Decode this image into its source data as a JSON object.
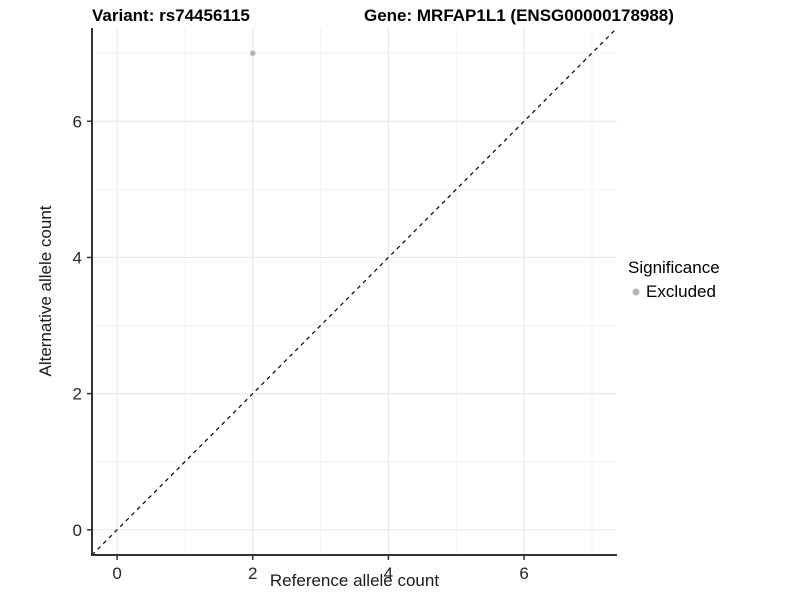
{
  "header": {
    "variant_title": "Variant: rs74456115",
    "gene_title": "Gene: MRFAP1L1 (ENSG00000178988)"
  },
  "chart_data": {
    "type": "scatter",
    "title_left": "Variant: rs74456115",
    "title_right": "Gene: MRFAP1L1 (ENSG00000178988)",
    "xlabel": "Reference allele count",
    "ylabel": "Alternative allele count",
    "xlim": [
      -0.37,
      7.37
    ],
    "ylim": [
      -0.37,
      7.37
    ],
    "x_major_ticks": [
      0,
      2,
      4,
      6
    ],
    "y_major_ticks": [
      0,
      2,
      4,
      6
    ],
    "x_minor_ticks": [
      1,
      3,
      5,
      7
    ],
    "y_minor_ticks": [
      1,
      3,
      5,
      7
    ],
    "grid": "on",
    "identity_line": {
      "style": "dashed",
      "color": "#000000",
      "from": [
        -0.37,
        -0.37
      ],
      "to": [
        7.37,
        7.37
      ]
    },
    "series": [
      {
        "name": "Excluded",
        "color": "#b3b3b3",
        "point_radius": 2.8,
        "points": [
          [
            2,
            7
          ]
        ]
      }
    ],
    "legend": {
      "title": "Significance",
      "position": "right",
      "entries": [
        {
          "label": "Excluded",
          "color": "#b3b3b3"
        }
      ]
    }
  },
  "colors": {
    "background": "#ffffff",
    "major_grid": "#e8e8e8",
    "minor_grid": "#f3f3f3",
    "axis_line": "#333333",
    "tick_label": "#262626",
    "axis_title": "#1a1a1a",
    "title": "#000000"
  }
}
